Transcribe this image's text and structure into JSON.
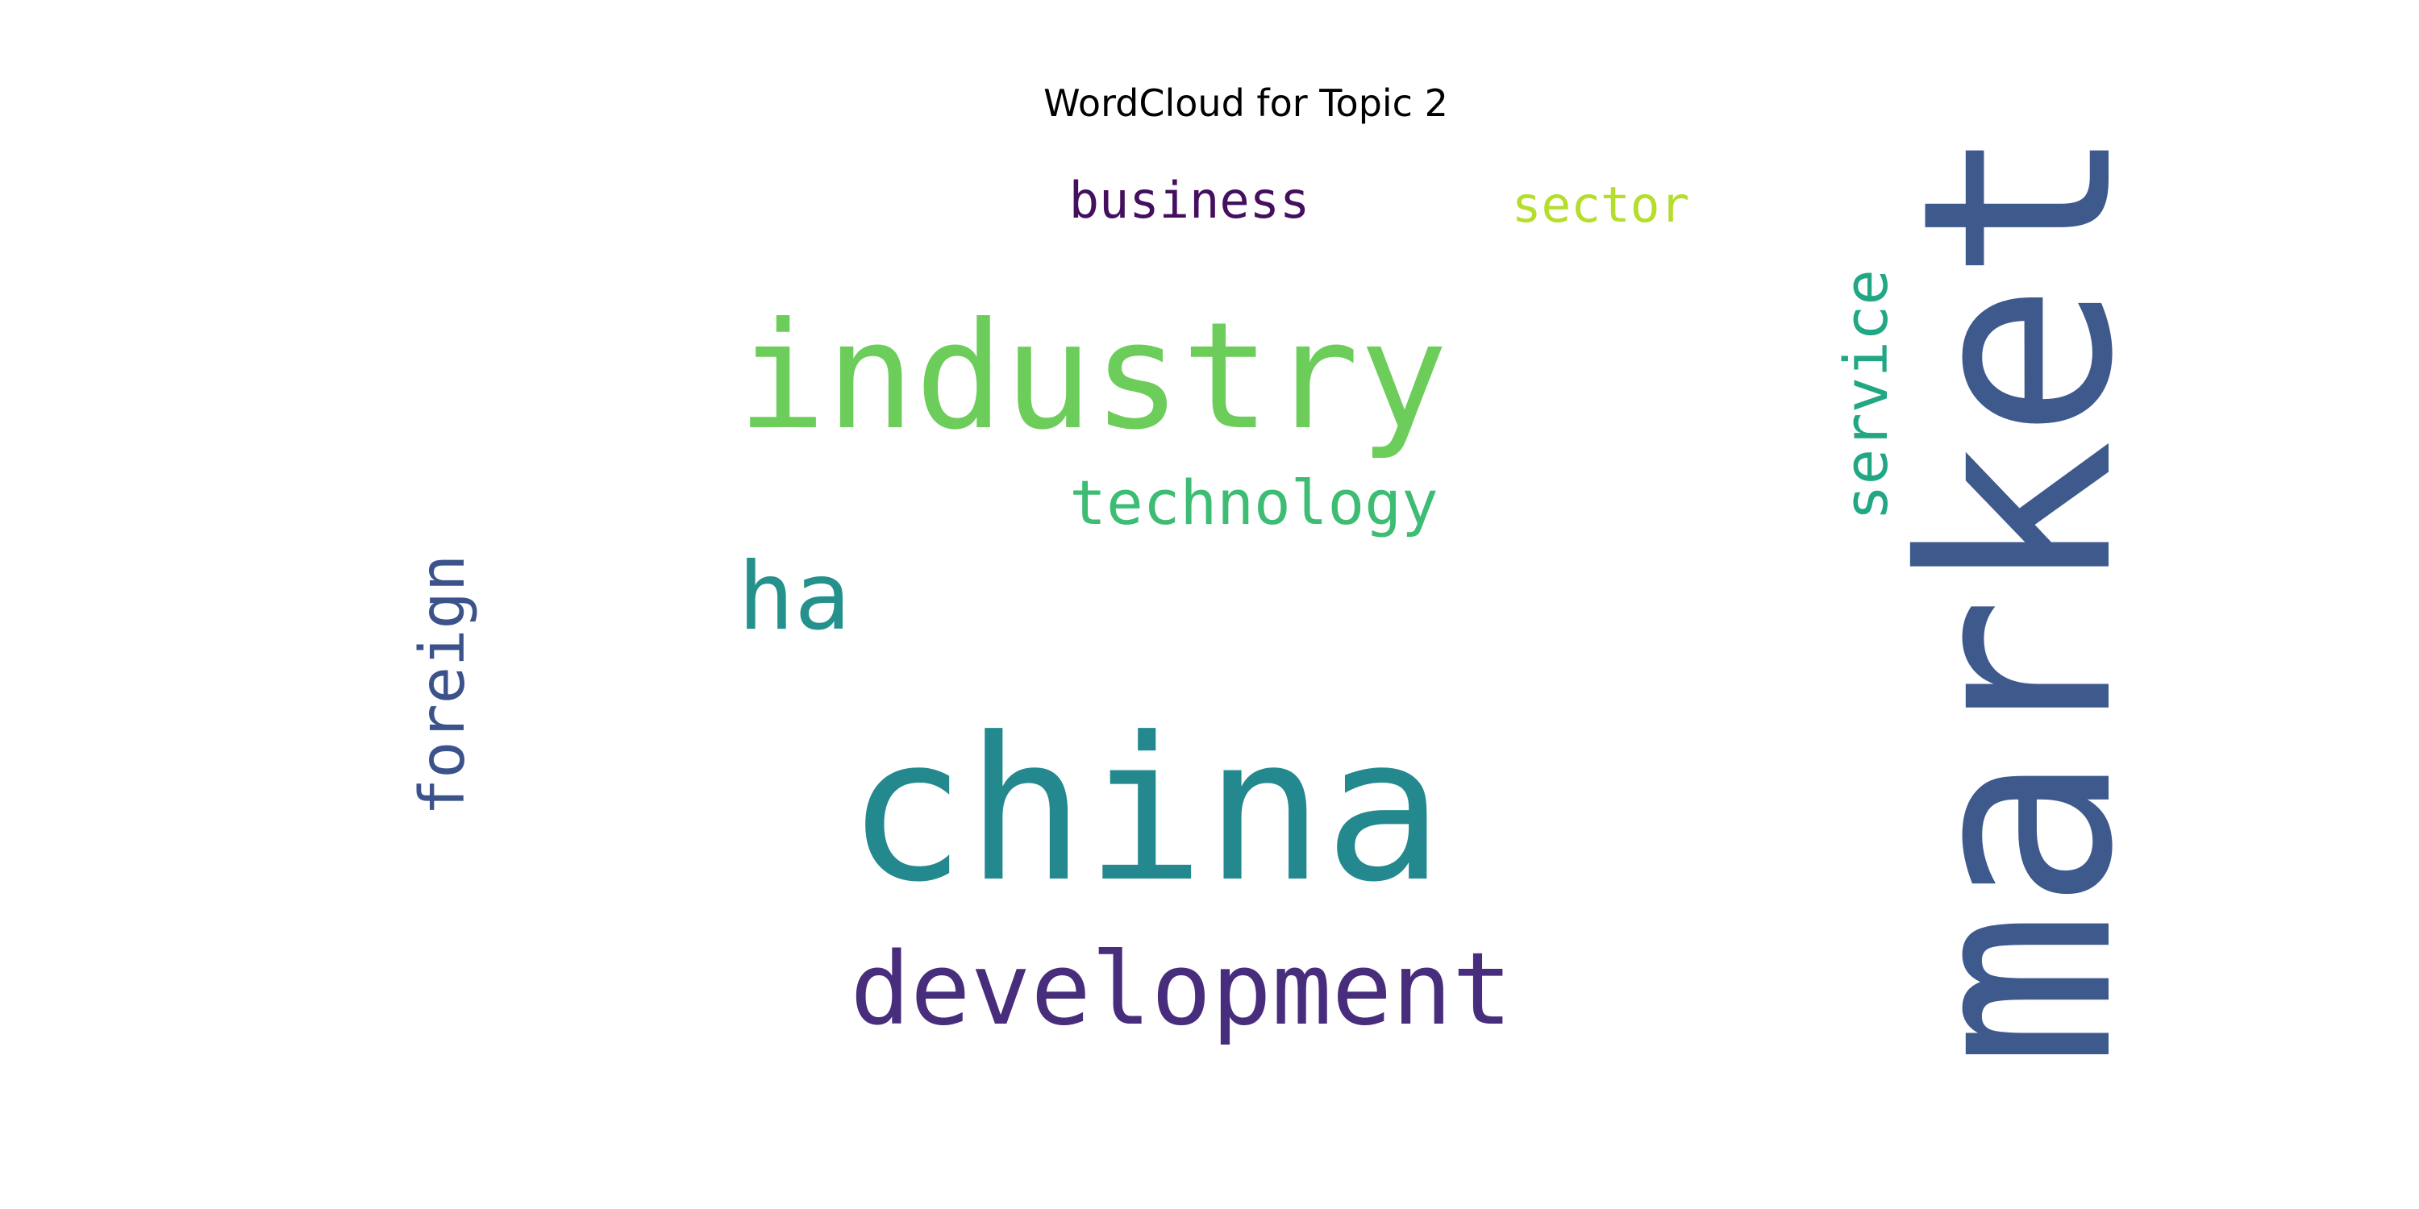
{
  "chart_data": {
    "type": "wordcloud",
    "title": "WordCloud for Topic 2",
    "colormap": "viridis",
    "background": "#ffffff",
    "words": [
      {
        "text": "china",
        "weight": 1.0,
        "color": "#23898e",
        "orientation": "horizontal"
      },
      {
        "text": "industry",
        "weight": 0.8,
        "color": "#6ccd5a",
        "orientation": "horizontal"
      },
      {
        "text": "market",
        "weight": 0.74,
        "color": "#3e5a8d",
        "orientation": "vertical"
      },
      {
        "text": "development",
        "weight": 0.55,
        "color": "#472d7b",
        "orientation": "horizontal"
      },
      {
        "text": "ha",
        "weight": 0.4,
        "color": "#25918c",
        "orientation": "horizontal"
      },
      {
        "text": "technology",
        "weight": 0.35,
        "color": "#3dbc74",
        "orientation": "horizontal"
      },
      {
        "text": "foreign",
        "weight": 0.32,
        "color": "#3b528b",
        "orientation": "vertical"
      },
      {
        "text": "service",
        "weight": 0.3,
        "color": "#22a785",
        "orientation": "vertical"
      },
      {
        "text": "business",
        "weight": 0.28,
        "color": "#440f5f",
        "orientation": "horizontal"
      },
      {
        "text": "sector",
        "weight": 0.26,
        "color": "#b5dd2b",
        "orientation": "horizontal"
      }
    ]
  }
}
